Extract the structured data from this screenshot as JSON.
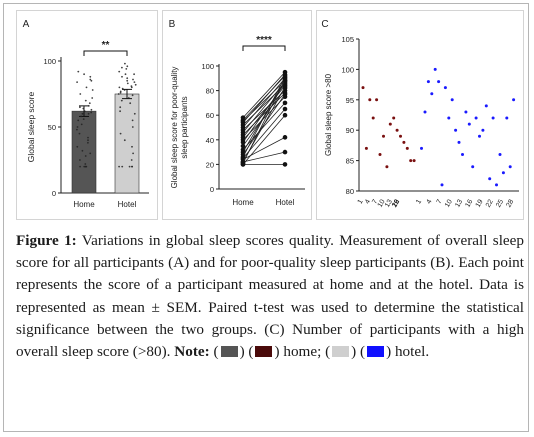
{
  "figure": {
    "caption_label": "Figure 1:",
    "caption_text": "Variations in global sleep scores quality. Measurement of overall sleep score for all participants (A) and for poor-quality sleep participants (B). Each point represents the score of a participant measured at home and at the hotel. Data is represented as mean ± SEM. Paired t-test was used to determine the statistical significance between the two groups. (C) Number of participants with a high overall sleep score (>80).",
    "note_label": "Note:",
    "legend": [
      {
        "swatches": [
          "#555555",
          "#4a0a0a"
        ],
        "text": "home;"
      },
      {
        "swatches": [
          "#cfcfcf",
          "#1010ff"
        ],
        "text": "hotel."
      }
    ]
  },
  "chart_data": [
    {
      "panel": "A",
      "type": "bar",
      "ylabel": "Global sleep score",
      "ylim": [
        0,
        100
      ],
      "yticks": [
        0,
        50,
        100
      ],
      "categories": [
        "Home",
        "Hotel"
      ],
      "values": [
        62,
        75
      ],
      "sem": [
        4,
        3.5
      ],
      "colors": [
        "#555555",
        "#cfcfcf"
      ],
      "significance": "**",
      "points": [
        [
          92,
          90,
          88,
          86,
          85,
          84,
          80,
          78,
          75,
          72,
          70,
          68,
          66,
          65,
          64,
          63,
          62,
          61,
          60,
          60,
          58,
          56,
          55,
          52,
          50,
          48,
          45,
          42,
          40,
          38,
          35,
          32,
          30,
          28,
          25,
          22,
          20,
          20,
          20,
          20,
          20
        ],
        [
          98,
          96,
          95,
          94,
          92,
          90,
          90,
          88,
          87,
          86,
          85,
          84,
          83,
          82,
          81,
          80,
          80,
          79,
          78,
          77,
          76,
          75,
          74,
          72,
          70,
          68,
          65,
          62,
          60,
          55,
          50,
          45,
          40,
          35,
          30,
          25,
          20,
          20,
          20,
          20,
          20
        ]
      ]
    },
    {
      "panel": "B",
      "type": "line",
      "ylabel": "Global sleep score for poor-quality sleep participants",
      "ylim": [
        0,
        100
      ],
      "yticks": [
        0,
        20,
        40,
        60,
        80,
        100
      ],
      "categories": [
        "Home",
        "Hotel"
      ],
      "significance": "****",
      "pairs": [
        [
          58,
          95
        ],
        [
          56,
          92
        ],
        [
          55,
          88
        ],
        [
          54,
          93
        ],
        [
          52,
          85
        ],
        [
          50,
          90
        ],
        [
          48,
          80
        ],
        [
          46,
          87
        ],
        [
          44,
          78
        ],
        [
          42,
          84
        ],
        [
          40,
          75
        ],
        [
          38,
          86
        ],
        [
          35,
          82
        ],
        [
          32,
          70
        ],
        [
          30,
          88
        ],
        [
          28,
          77
        ],
        [
          26,
          91
        ],
        [
          25,
          65
        ],
        [
          24,
          42
        ],
        [
          22,
          83
        ],
        [
          22,
          30
        ],
        [
          20,
          20
        ],
        [
          20,
          60
        ],
        [
          21,
          89
        ]
      ]
    },
    {
      "panel": "C",
      "type": "scatter",
      "ylabel": "Global sleep score >80",
      "ylim": [
        80,
        105
      ],
      "yticks": [
        80,
        85,
        90,
        95,
        100,
        105
      ],
      "xtick_labels": [
        "1",
        "4",
        "7",
        "10",
        "13",
        "16",
        "19",
        "22",
        "1",
        "4",
        "7",
        "10",
        "13",
        "16",
        "19",
        "22",
        "25",
        "28"
      ],
      "series": [
        {
          "name": "home",
          "color": "#7a1010",
          "values": [
            97,
            87,
            95,
            92,
            95,
            86,
            89,
            84,
            91,
            92,
            90,
            89,
            88,
            87,
            85,
            85
          ]
        },
        {
          "name": "hotel",
          "color": "#1a1aff",
          "values": [
            87,
            93,
            98,
            96,
            100,
            98,
            81,
            97,
            92,
            95,
            90,
            88,
            86,
            93,
            91,
            84,
            92,
            89,
            90,
            94,
            82,
            92,
            81,
            86,
            83,
            92,
            84,
            95
          ]
        }
      ]
    }
  ]
}
